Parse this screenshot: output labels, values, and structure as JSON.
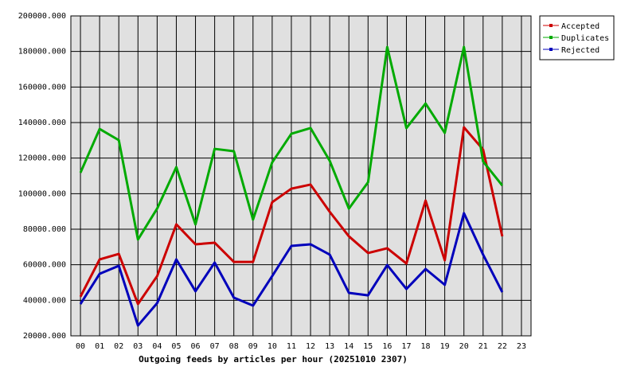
{
  "chart_data": {
    "type": "line",
    "title": "Outgoing feeds by articles per hour (20251010 2307)",
    "categories": [
      "00",
      "01",
      "02",
      "03",
      "04",
      "05",
      "06",
      "07",
      "08",
      "09",
      "10",
      "11",
      "12",
      "13",
      "14",
      "15",
      "16",
      "17",
      "18",
      "19",
      "20",
      "21",
      "22",
      "23"
    ],
    "series": [
      {
        "name": "Accepted",
        "color": "#cc0000",
        "values": [
          42000,
          63000,
          66100,
          37900,
          53600,
          82700,
          71500,
          72400,
          61600,
          61600,
          95200,
          102800,
          105100,
          89800,
          76000,
          66600,
          69300,
          60700,
          96100,
          62500,
          137300,
          124800,
          76000,
          null
        ]
      },
      {
        "name": "Duplicates",
        "color": "#00aa00",
        "values": [
          111800,
          136400,
          130100,
          74200,
          91600,
          114900,
          82700,
          125200,
          123900,
          85400,
          117600,
          133700,
          136900,
          118500,
          91600,
          106400,
          182500,
          136900,
          150700,
          134200,
          182500,
          118100,
          104600,
          null
        ]
      },
      {
        "name": "Rejected",
        "color": "#0000bb",
        "values": [
          37900,
          54900,
          59400,
          25800,
          38400,
          63000,
          45100,
          61200,
          41500,
          37000,
          53600,
          70600,
          71500,
          65700,
          44200,
          42800,
          59800,
          46400,
          57600,
          48700,
          89000,
          65700,
          44600,
          null
        ]
      }
    ],
    "ylim": [
      20000,
      200000
    ],
    "yticks": [
      {
        "value": 20000,
        "label": "20000.000"
      },
      {
        "value": 40000,
        "label": "40000.000"
      },
      {
        "value": 60000,
        "label": "60000.000"
      },
      {
        "value": 80000,
        "label": "80000.000"
      },
      {
        "value": 100000,
        "label": "100000.000"
      },
      {
        "value": 120000,
        "label": "120000.000"
      },
      {
        "value": 140000,
        "label": "140000.000"
      },
      {
        "value": 160000,
        "label": "160000.000"
      },
      {
        "value": 180000,
        "label": "180000.000"
      },
      {
        "value": 200000,
        "label": "200000.000"
      }
    ],
    "grid": true,
    "legend": "right"
  }
}
